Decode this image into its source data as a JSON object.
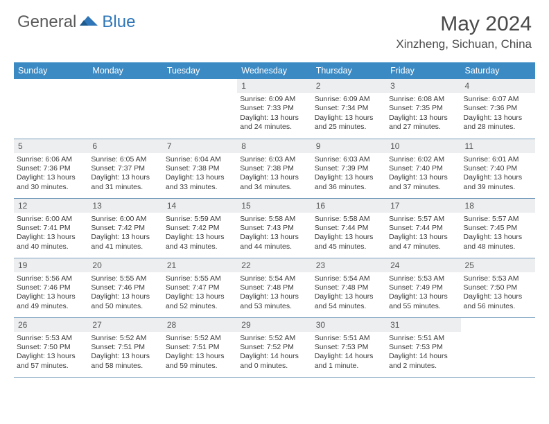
{
  "logo": {
    "general": "General",
    "blue": "Blue"
  },
  "title": "May 2024",
  "location": "Xinzheng, Sichuan, China",
  "weekdays": [
    "Sunday",
    "Monday",
    "Tuesday",
    "Wednesday",
    "Thursday",
    "Friday",
    "Saturday"
  ],
  "colors": {
    "header_bg": "#3b8ac4",
    "header_text": "#ffffff",
    "daynum_bg": "#eceeef",
    "border": "#7a9fbf",
    "logo_gray": "#5a5a5a",
    "logo_blue": "#2f76b8"
  },
  "grid": [
    [
      null,
      null,
      null,
      {
        "n": "1",
        "sr": "6:09 AM",
        "ss": "7:33 PM",
        "dl": "13 hours and 24 minutes."
      },
      {
        "n": "2",
        "sr": "6:09 AM",
        "ss": "7:34 PM",
        "dl": "13 hours and 25 minutes."
      },
      {
        "n": "3",
        "sr": "6:08 AM",
        "ss": "7:35 PM",
        "dl": "13 hours and 27 minutes."
      },
      {
        "n": "4",
        "sr": "6:07 AM",
        "ss": "7:36 PM",
        "dl": "13 hours and 28 minutes."
      }
    ],
    [
      {
        "n": "5",
        "sr": "6:06 AM",
        "ss": "7:36 PM",
        "dl": "13 hours and 30 minutes."
      },
      {
        "n": "6",
        "sr": "6:05 AM",
        "ss": "7:37 PM",
        "dl": "13 hours and 31 minutes."
      },
      {
        "n": "7",
        "sr": "6:04 AM",
        "ss": "7:38 PM",
        "dl": "13 hours and 33 minutes."
      },
      {
        "n": "8",
        "sr": "6:03 AM",
        "ss": "7:38 PM",
        "dl": "13 hours and 34 minutes."
      },
      {
        "n": "9",
        "sr": "6:03 AM",
        "ss": "7:39 PM",
        "dl": "13 hours and 36 minutes."
      },
      {
        "n": "10",
        "sr": "6:02 AM",
        "ss": "7:40 PM",
        "dl": "13 hours and 37 minutes."
      },
      {
        "n": "11",
        "sr": "6:01 AM",
        "ss": "7:40 PM",
        "dl": "13 hours and 39 minutes."
      }
    ],
    [
      {
        "n": "12",
        "sr": "6:00 AM",
        "ss": "7:41 PM",
        "dl": "13 hours and 40 minutes."
      },
      {
        "n": "13",
        "sr": "6:00 AM",
        "ss": "7:42 PM",
        "dl": "13 hours and 41 minutes."
      },
      {
        "n": "14",
        "sr": "5:59 AM",
        "ss": "7:42 PM",
        "dl": "13 hours and 43 minutes."
      },
      {
        "n": "15",
        "sr": "5:58 AM",
        "ss": "7:43 PM",
        "dl": "13 hours and 44 minutes."
      },
      {
        "n": "16",
        "sr": "5:58 AM",
        "ss": "7:44 PM",
        "dl": "13 hours and 45 minutes."
      },
      {
        "n": "17",
        "sr": "5:57 AM",
        "ss": "7:44 PM",
        "dl": "13 hours and 47 minutes."
      },
      {
        "n": "18",
        "sr": "5:57 AM",
        "ss": "7:45 PM",
        "dl": "13 hours and 48 minutes."
      }
    ],
    [
      {
        "n": "19",
        "sr": "5:56 AM",
        "ss": "7:46 PM",
        "dl": "13 hours and 49 minutes."
      },
      {
        "n": "20",
        "sr": "5:55 AM",
        "ss": "7:46 PM",
        "dl": "13 hours and 50 minutes."
      },
      {
        "n": "21",
        "sr": "5:55 AM",
        "ss": "7:47 PM",
        "dl": "13 hours and 52 minutes."
      },
      {
        "n": "22",
        "sr": "5:54 AM",
        "ss": "7:48 PM",
        "dl": "13 hours and 53 minutes."
      },
      {
        "n": "23",
        "sr": "5:54 AM",
        "ss": "7:48 PM",
        "dl": "13 hours and 54 minutes."
      },
      {
        "n": "24",
        "sr": "5:53 AM",
        "ss": "7:49 PM",
        "dl": "13 hours and 55 minutes."
      },
      {
        "n": "25",
        "sr": "5:53 AM",
        "ss": "7:50 PM",
        "dl": "13 hours and 56 minutes."
      }
    ],
    [
      {
        "n": "26",
        "sr": "5:53 AM",
        "ss": "7:50 PM",
        "dl": "13 hours and 57 minutes."
      },
      {
        "n": "27",
        "sr": "5:52 AM",
        "ss": "7:51 PM",
        "dl": "13 hours and 58 minutes."
      },
      {
        "n": "28",
        "sr": "5:52 AM",
        "ss": "7:51 PM",
        "dl": "13 hours and 59 minutes."
      },
      {
        "n": "29",
        "sr": "5:52 AM",
        "ss": "7:52 PM",
        "dl": "14 hours and 0 minutes."
      },
      {
        "n": "30",
        "sr": "5:51 AM",
        "ss": "7:53 PM",
        "dl": "14 hours and 1 minute."
      },
      {
        "n": "31",
        "sr": "5:51 AM",
        "ss": "7:53 PM",
        "dl": "14 hours and 2 minutes."
      },
      null
    ]
  ],
  "labels": {
    "sunrise": "Sunrise:",
    "sunset": "Sunset:",
    "daylight": "Daylight:"
  }
}
